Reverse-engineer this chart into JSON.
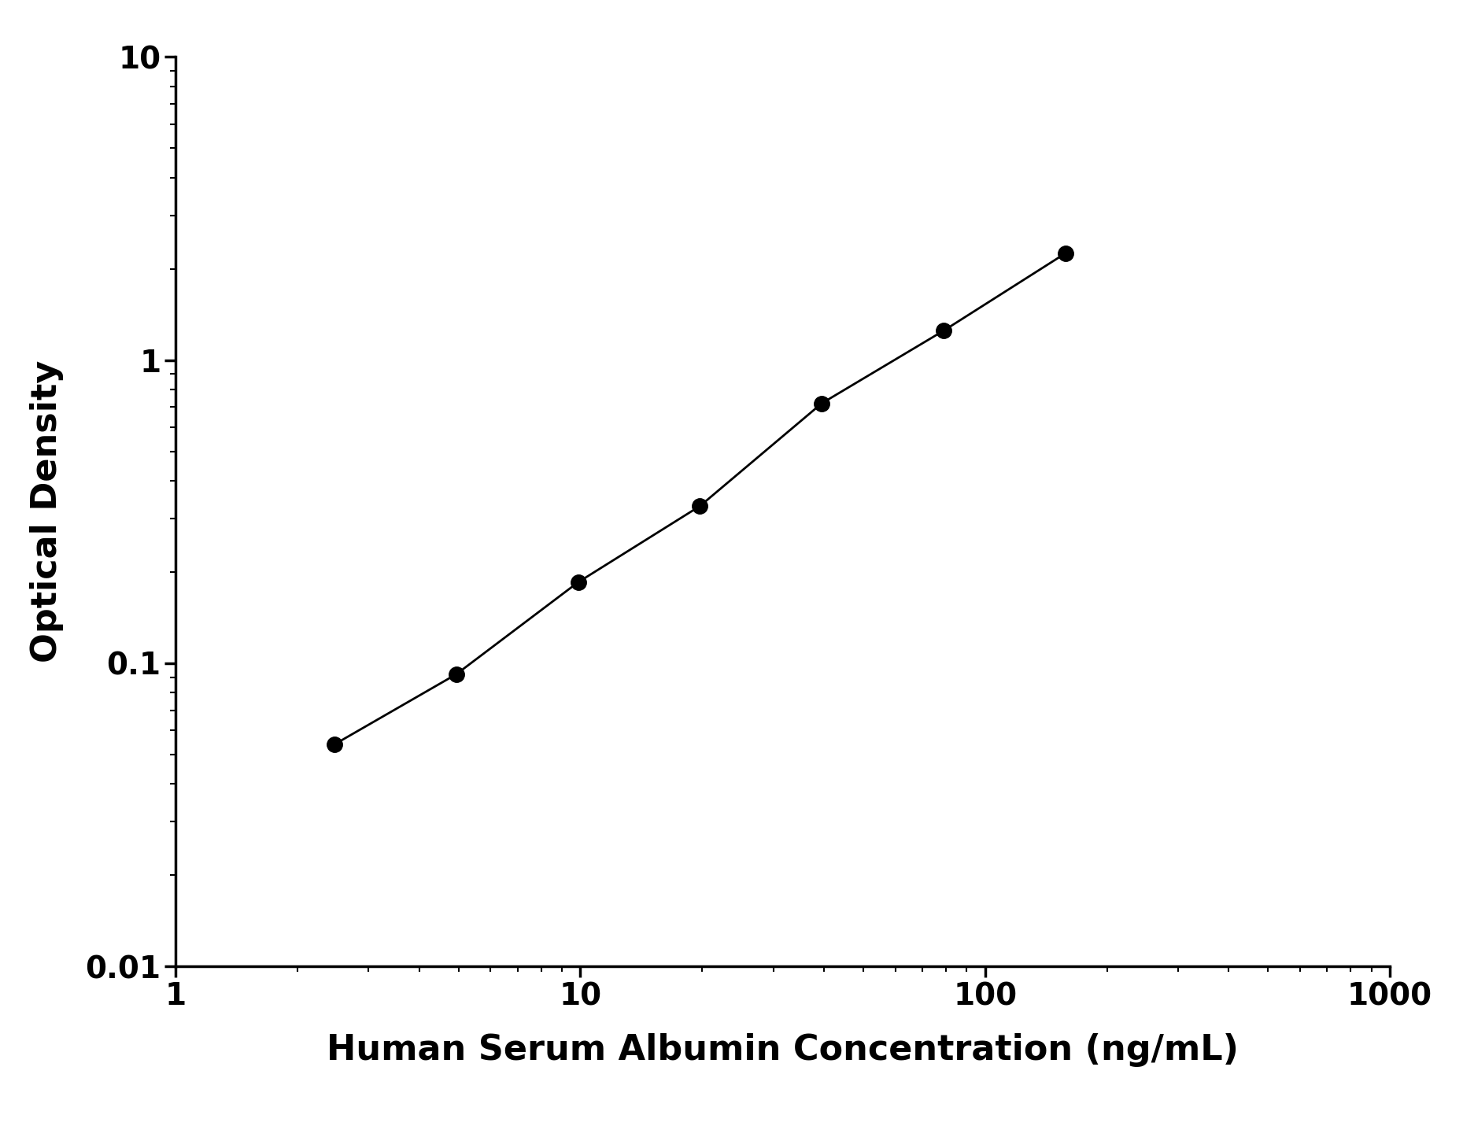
{
  "x": [
    2.469,
    4.938,
    9.875,
    19.75,
    39.5,
    79.0,
    158.0
  ],
  "y": [
    0.054,
    0.092,
    0.185,
    0.33,
    0.72,
    1.25,
    2.25
  ],
  "xlabel": "Human Serum Albumin Concentration (ng/mL)",
  "ylabel": "Optical Density",
  "xlim": [
    1,
    1000
  ],
  "ylim": [
    0.01,
    10
  ],
  "line_color": "#000000",
  "marker_color": "#000000",
  "marker_size": 14,
  "linewidth": 2.0,
  "background_color": "#ffffff",
  "xlabel_fontsize": 32,
  "ylabel_fontsize": 32,
  "tick_fontsize": 28,
  "spine_linewidth": 2.5
}
